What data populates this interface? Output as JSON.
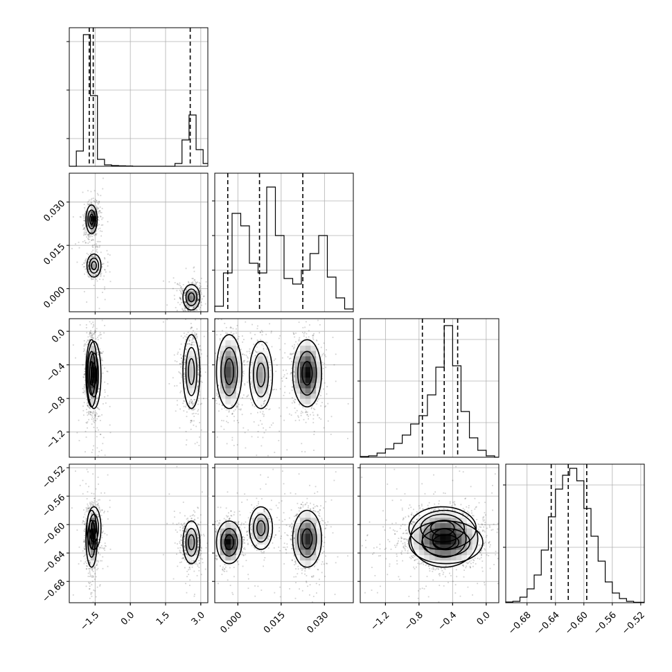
{
  "chart_data": {
    "type": "corner",
    "title": "",
    "n_params": 4,
    "parameters": [
      {
        "index": 0,
        "label": "",
        "range": [
          -2.6,
          3.3
        ],
        "ticks": [
          -1.5,
          0.0,
          1.5,
          3.0
        ],
        "tick_labels": [
          "−1.5",
          "0.0",
          "1.5",
          "3.0"
        ],
        "quantiles": [
          -1.75,
          -1.58,
          2.55
        ],
        "histogram": {
          "edges": [
            -2.6,
            -2.3,
            -2.0,
            -1.7,
            -1.4,
            -1.1,
            -0.8,
            -0.5,
            -0.2,
            0.1,
            0.4,
            0.7,
            1.0,
            1.3,
            1.6,
            1.9,
            2.2,
            2.5,
            2.8,
            3.1,
            3.3
          ],
          "counts": [
            0,
            0.11,
            0.95,
            0.51,
            0.05,
            0.01,
            0.005,
            0.003,
            0.002,
            0,
            0,
            0,
            0,
            0,
            0,
            0.02,
            0.19,
            0.37,
            0.12,
            0.02
          ],
          "ylim": [
            0,
            1.0
          ],
          "yticks": [
            0.2,
            0.55,
            0.9
          ]
        }
      },
      {
        "index": 1,
        "label": "",
        "range": [
          -0.008,
          0.04
        ],
        "ticks": [
          0.0,
          0.015,
          0.03
        ],
        "tick_labels": [
          "0.000",
          "0.015",
          "0.030"
        ],
        "quantiles": [
          -0.0035,
          0.0075,
          0.0225
        ],
        "histogram": {
          "edges": [
            -0.008,
            -0.005,
            -0.002,
            0.001,
            0.004,
            0.007,
            0.01,
            0.013,
            0.016,
            0.019,
            0.022,
            0.025,
            0.028,
            0.031,
            0.034,
            0.037,
            0.04
          ],
          "counts": [
            0.04,
            0.28,
            0.71,
            0.62,
            0.35,
            0.28,
            0.9,
            0.55,
            0.24,
            0.2,
            0.3,
            0.42,
            0.55,
            0.25,
            0.1,
            0.02
          ],
          "ylim": [
            0,
            1.0
          ],
          "yticks": [
            0.3,
            0.55,
            0.8
          ]
        }
      },
      {
        "index": 2,
        "label": "",
        "range": [
          -1.5,
          0.15
        ],
        "ticks": [
          -1.2,
          -0.8,
          -0.4,
          0.0
        ],
        "tick_labels": [
          "−1.2",
          "−0.8",
          "−0.4",
          "0.0"
        ],
        "quantiles": [
          -0.76,
          -0.5,
          -0.34
        ],
        "histogram": {
          "edges": [
            -1.5,
            -1.4,
            -1.3,
            -1.2,
            -1.1,
            -1.0,
            -0.9,
            -0.8,
            -0.7,
            -0.6,
            -0.5,
            -0.4,
            -0.3,
            -0.2,
            -0.1,
            0.0,
            0.1,
            0.15
          ],
          "counts": [
            0.005,
            0.01,
            0.03,
            0.06,
            0.1,
            0.16,
            0.24,
            0.3,
            0.45,
            0.65,
            0.95,
            0.66,
            0.33,
            0.14,
            0.05,
            0.01,
            0.0
          ],
          "ylim": [
            0,
            1.0
          ],
          "yticks": [
            0.25,
            0.55,
            0.85
          ]
        }
      },
      {
        "index": 3,
        "label": "",
        "range": [
          -0.71,
          -0.515
        ],
        "ticks": [
          -0.68,
          -0.64,
          -0.6,
          -0.56,
          -0.52
        ],
        "tick_labels": [
          "−0.68",
          "−0.64",
          "−0.60",
          "−0.56",
          "−0.52"
        ],
        "quantiles": [
          -0.646,
          -0.622,
          -0.596
        ],
        "histogram": {
          "edges": [
            -0.71,
            -0.7,
            -0.69,
            -0.68,
            -0.67,
            -0.66,
            -0.65,
            -0.64,
            -0.63,
            -0.62,
            -0.61,
            -0.6,
            -0.59,
            -0.58,
            -0.57,
            -0.56,
            -0.55,
            -0.54,
            -0.53,
            -0.515
          ],
          "counts": [
            0.005,
            0.01,
            0.04,
            0.1,
            0.2,
            0.38,
            0.62,
            0.82,
            0.92,
            0.97,
            0.88,
            0.68,
            0.48,
            0.3,
            0.15,
            0.07,
            0.03,
            0.01,
            0.003
          ],
          "ylim": [
            0,
            1.0
          ],
          "yticks": [
            0.4,
            0.85
          ]
        }
      }
    ],
    "modes": [
      {
        "weight": 0.47,
        "mean": [
          -1.65,
          0.024,
          -0.5,
          -0.62
        ],
        "sd": [
          0.12,
          0.0025,
          0.2,
          0.02
        ]
      },
      {
        "weight": 0.18,
        "mean": [
          -1.55,
          0.008,
          -0.52,
          -0.605
        ],
        "sd": [
          0.15,
          0.002,
          0.2,
          0.015
        ]
      },
      {
        "weight": 0.35,
        "mean": [
          2.6,
          -0.003,
          -0.48,
          -0.625
        ],
        "sd": [
          0.18,
          0.0022,
          0.22,
          0.015
        ]
      }
    ],
    "grid": true,
    "legend": "none"
  }
}
